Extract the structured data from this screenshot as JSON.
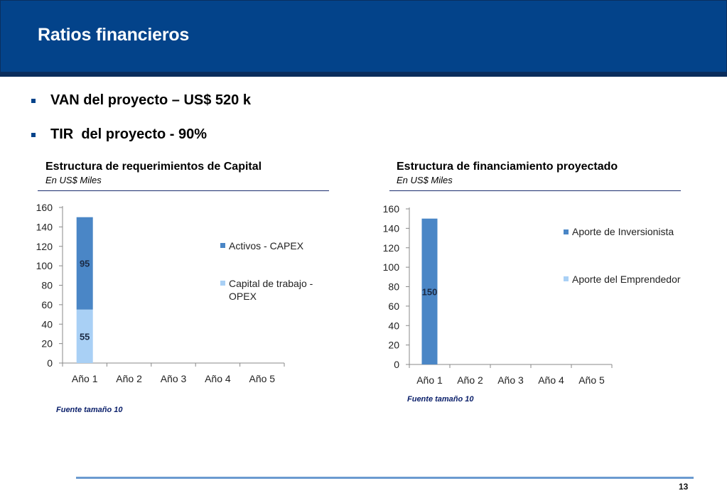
{
  "slide": {
    "title": "Ratios financieros",
    "page_number": "13",
    "bullets": [
      {
        "text": "VAN del proyecto – US$ 520 k"
      },
      {
        "text": "TIR  del proyecto - 90%"
      }
    ]
  },
  "panels": [
    {
      "title": "Estructura de requerimientos de Capital",
      "subtitle": "En US$ Miles",
      "source": "Fuente tamaño 10"
    },
    {
      "title": "Estructura de financiamiento proyectado",
      "subtitle": "En US$ Miles",
      "source": "Fuente tamaño 10"
    }
  ],
  "colors": {
    "header": "#03438a",
    "series_dark": "#4a86c6",
    "series_light": "#a9d0f5"
  },
  "chart_data": [
    {
      "type": "bar",
      "stacked": true,
      "categories": [
        "Año 1",
        "Año 2",
        "Año 3",
        "Año 4",
        "Año 5"
      ],
      "ylim": [
        0,
        160
      ],
      "yticks": [
        0,
        20,
        40,
        60,
        80,
        100,
        120,
        140,
        160
      ],
      "legend": "right",
      "series": [
        {
          "name": "Capital de trabajo - OPEX",
          "color": "#a9d0f5",
          "values": [
            55,
            0,
            0,
            0,
            0
          ],
          "labels": [
            "55",
            "",
            "",
            "",
            ""
          ]
        },
        {
          "name": "Activos - CAPEX",
          "color": "#4a86c6",
          "values": [
            95,
            0,
            0,
            0,
            0
          ],
          "labels": [
            "95",
            "",
            "",
            "",
            ""
          ]
        }
      ]
    },
    {
      "type": "bar",
      "stacked": true,
      "categories": [
        "Año 1",
        "Año 2",
        "Año 3",
        "Año 4",
        "Año 5"
      ],
      "ylim": [
        0,
        160
      ],
      "yticks": [
        0,
        20,
        40,
        60,
        80,
        100,
        120,
        140,
        160
      ],
      "legend": "right",
      "series": [
        {
          "name": "Aporte del Emprendedor",
          "color": "#a9d0f5",
          "values": [
            0,
            0,
            0,
            0,
            0
          ],
          "labels": [
            "",
            "",
            "",
            "",
            ""
          ]
        },
        {
          "name": "Aporte de Inversionista",
          "color": "#4a86c6",
          "values": [
            150,
            0,
            0,
            0,
            0
          ],
          "labels": [
            "150",
            "",
            "",
            "",
            ""
          ]
        }
      ]
    }
  ]
}
